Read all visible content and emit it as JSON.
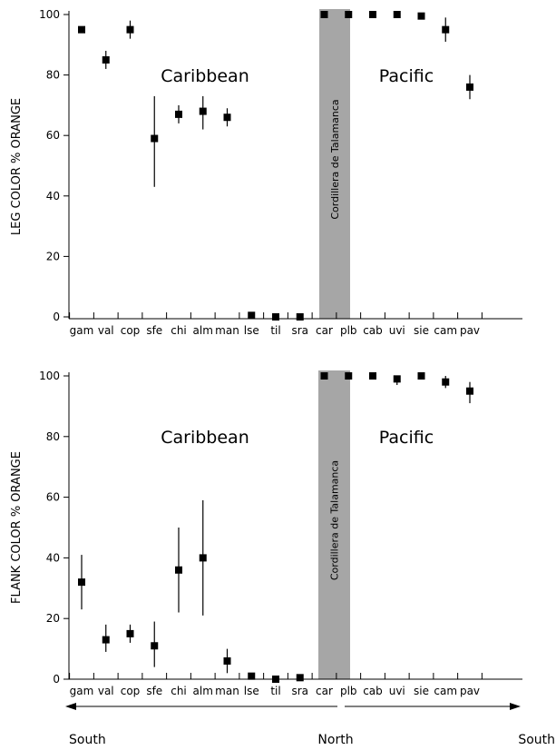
{
  "chart_data": [
    {
      "type": "scatter",
      "ylabel": "LEG COLOR % ORANGE",
      "ylim": [
        0,
        100
      ],
      "yticks": [
        0,
        20,
        40,
        60,
        80,
        100
      ],
      "categories": [
        "gam",
        "val",
        "cop",
        "sfe",
        "chi",
        "alm",
        "man",
        "lse",
        "til",
        "sra",
        "car",
        "plb",
        "cab",
        "uvi",
        "sie",
        "cam",
        "pav"
      ],
      "values": [
        95,
        85,
        95,
        59,
        67,
        68,
        66,
        0.5,
        0,
        0,
        100,
        100,
        100,
        100,
        99.5,
        95,
        76
      ],
      "error_low": [
        95,
        82,
        92,
        43,
        64,
        62,
        63,
        0.5,
        0,
        0,
        100,
        100,
        100,
        100,
        99.5,
        91,
        72
      ],
      "error_high": [
        95,
        88,
        98,
        73,
        70,
        73,
        69,
        0.5,
        0,
        0,
        100,
        100,
        100,
        100,
        99.5,
        99,
        80
      ],
      "region_left": "Caribbean",
      "region_right": "Pacific",
      "band_label": "Cordillera de Talamanca"
    },
    {
      "type": "scatter",
      "ylabel": "FLANK COLOR % ORANGE",
      "ylim": [
        0,
        100
      ],
      "yticks": [
        0,
        20,
        40,
        60,
        80,
        100
      ],
      "categories": [
        "gam",
        "val",
        "cop",
        "sfe",
        "chi",
        "alm",
        "man",
        "lse",
        "til",
        "sra",
        "car",
        "plb",
        "cab",
        "uvi",
        "sie",
        "cam",
        "pav"
      ],
      "values": [
        32,
        13,
        15,
        11,
        36,
        40,
        6,
        1,
        0,
        0.5,
        100,
        100,
        100,
        99,
        100,
        98,
        95
      ],
      "error_low": [
        23,
        9,
        12,
        4,
        22,
        21,
        2,
        1,
        0,
        0.5,
        100,
        100,
        100,
        97,
        100,
        96,
        91
      ],
      "error_high": [
        41,
        18,
        18,
        19,
        50,
        59,
        10,
        1,
        0,
        0.5,
        100,
        100,
        100,
        100,
        100,
        100,
        98
      ],
      "region_left": "Caribbean",
      "region_right": "Pacific",
      "band_label": "Cordillera de Talamanca"
    }
  ],
  "direction": {
    "left": "South",
    "center": "North",
    "right": "South"
  }
}
